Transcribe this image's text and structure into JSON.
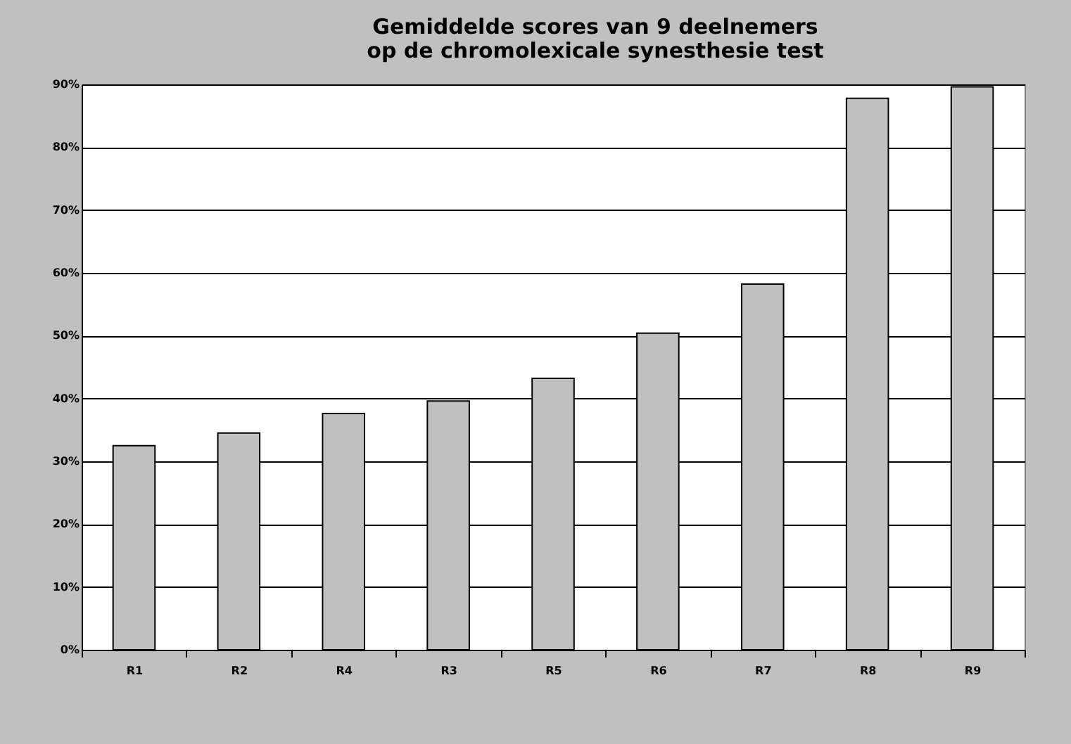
{
  "chart_data": {
    "type": "bar",
    "title": "Gemiddelde scores van 9 deelnemers\nop de chromolexicale synesthesie test",
    "categories": [
      "R1",
      "R2",
      "R4",
      "R3",
      "R5",
      "R6",
      "R7",
      "R8",
      "R9"
    ],
    "values": [
      32.5,
      34.5,
      37.6,
      39.6,
      43.2,
      50.4,
      58.2,
      87.8,
      89.6
    ],
    "color": "#c0c0c0",
    "ylim": [
      0,
      90
    ],
    "yticks": [
      {
        "value": 0,
        "label": "0%"
      },
      {
        "value": 10,
        "label": "10%"
      },
      {
        "value": 20,
        "label": "20%"
      },
      {
        "value": 30,
        "label": "30%"
      },
      {
        "value": 40,
        "label": "40%"
      },
      {
        "value": 50,
        "label": "50%"
      },
      {
        "value": 60,
        "label": "60%"
      },
      {
        "value": 70,
        "label": "70%"
      },
      {
        "value": 80,
        "label": "80%"
      },
      {
        "value": 90,
        "label": "90%"
      }
    ],
    "grid": "y"
  }
}
